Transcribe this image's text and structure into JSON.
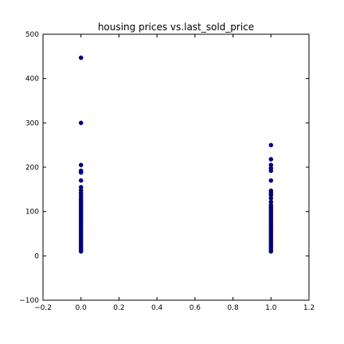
{
  "chart_data": {
    "type": "scatter",
    "title": "housing prices vs.last_sold_price",
    "xlabel": "",
    "ylabel": "",
    "xlim": [
      -0.2,
      1.2
    ],
    "ylim": [
      -100,
      500
    ],
    "grid": false,
    "x_ticks": [
      -0.2,
      0.0,
      0.2,
      0.4,
      0.6,
      0.8,
      1.0,
      1.2
    ],
    "x_tick_labels": [
      "−0.2",
      "0.0",
      "0.2",
      "0.4",
      "0.6",
      "0.8",
      "1.0",
      "1.2"
    ],
    "y_ticks": [
      -100,
      0,
      100,
      200,
      300,
      400,
      500
    ],
    "y_tick_labels": [
      "−100",
      "0",
      "100",
      "200",
      "300",
      "400",
      "500"
    ],
    "color": "#00008b",
    "series": [
      {
        "points": [
          {
            "x": 0,
            "y": 447
          },
          {
            "x": 0,
            "y": 300
          },
          {
            "x": 0,
            "y": 205
          },
          {
            "x": 0,
            "y": 192
          },
          {
            "x": 0,
            "y": 188
          },
          {
            "x": 0,
            "y": 170
          },
          {
            "x": 0,
            "y": 155
          },
          {
            "x": 0,
            "y": 148
          },
          {
            "x": 0,
            "y": 142
          },
          {
            "x": 0,
            "y": 136
          },
          {
            "x": 0,
            "y": 130
          },
          {
            "x": 0,
            "y": 125
          },
          {
            "x": 0,
            "y": 120
          },
          {
            "x": 0,
            "y": 115
          },
          {
            "x": 0,
            "y": 110
          },
          {
            "x": 0,
            "y": 105
          },
          {
            "x": 0,
            "y": 100
          },
          {
            "x": 0,
            "y": 95
          },
          {
            "x": 0,
            "y": 90
          },
          {
            "x": 0,
            "y": 85
          },
          {
            "x": 0,
            "y": 80
          },
          {
            "x": 0,
            "y": 75
          },
          {
            "x": 0,
            "y": 70
          },
          {
            "x": 0,
            "y": 65
          },
          {
            "x": 0,
            "y": 60
          },
          {
            "x": 0,
            "y": 55
          },
          {
            "x": 0,
            "y": 50
          },
          {
            "x": 0,
            "y": 45
          },
          {
            "x": 0,
            "y": 40
          },
          {
            "x": 0,
            "y": 35
          },
          {
            "x": 0,
            "y": 30
          },
          {
            "x": 0,
            "y": 25
          },
          {
            "x": 0,
            "y": 20
          },
          {
            "x": 0,
            "y": 15
          },
          {
            "x": 0,
            "y": 10
          },
          {
            "x": 1,
            "y": 250
          },
          {
            "x": 1,
            "y": 218
          },
          {
            "x": 1,
            "y": 205
          },
          {
            "x": 1,
            "y": 198
          },
          {
            "x": 1,
            "y": 192
          },
          {
            "x": 1,
            "y": 170
          },
          {
            "x": 1,
            "y": 147
          },
          {
            "x": 1,
            "y": 142
          },
          {
            "x": 1,
            "y": 137
          },
          {
            "x": 1,
            "y": 130
          },
          {
            "x": 1,
            "y": 122
          },
          {
            "x": 1,
            "y": 115
          },
          {
            "x": 1,
            "y": 110
          },
          {
            "x": 1,
            "y": 105
          },
          {
            "x": 1,
            "y": 100
          },
          {
            "x": 1,
            "y": 95
          },
          {
            "x": 1,
            "y": 90
          },
          {
            "x": 1,
            "y": 85
          },
          {
            "x": 1,
            "y": 80
          },
          {
            "x": 1,
            "y": 75
          },
          {
            "x": 1,
            "y": 70
          },
          {
            "x": 1,
            "y": 65
          },
          {
            "x": 1,
            "y": 60
          },
          {
            "x": 1,
            "y": 55
          },
          {
            "x": 1,
            "y": 50
          },
          {
            "x": 1,
            "y": 45
          },
          {
            "x": 1,
            "y": 40
          },
          {
            "x": 1,
            "y": 35
          },
          {
            "x": 1,
            "y": 30
          },
          {
            "x": 1,
            "y": 25
          },
          {
            "x": 1,
            "y": 20
          },
          {
            "x": 1,
            "y": 15
          },
          {
            "x": 1,
            "y": 10
          }
        ]
      }
    ]
  }
}
